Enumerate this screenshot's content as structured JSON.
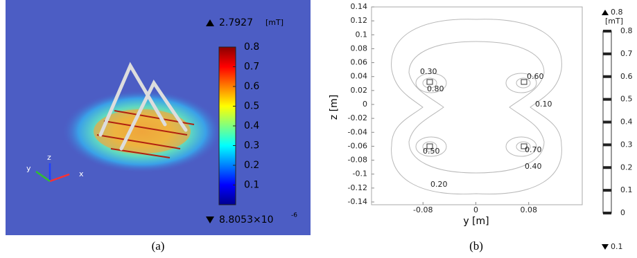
{
  "panel_a": {
    "max_value": "2.7927",
    "unit": "[mT]",
    "min_value": "8.8053×10",
    "min_exponent": "-6",
    "colorbar_range": [
      0,
      0.8
    ],
    "colorbar_ticks": [
      0.1,
      0.2,
      0.3,
      0.4,
      0.5,
      0.6,
      0.7,
      0.8
    ],
    "axes": {
      "z": "z",
      "y": "y",
      "x": "x"
    },
    "caption": "(a)"
  },
  "panel_b": {
    "xlabel": "y [m]",
    "ylabel": "z [m]",
    "xlim": [
      -0.16,
      0.16
    ],
    "ylim": [
      -0.14,
      0.14
    ],
    "xticks": [
      -0.08,
      0,
      0.08
    ],
    "yticks": [
      -0.14,
      -0.12,
      -0.1,
      -0.08,
      -0.06,
      -0.04,
      -0.02,
      0,
      0.02,
      0.04,
      0.06,
      0.08,
      0.1,
      0.12,
      0.14
    ],
    "contour_labels": [
      "0.30",
      "0.80",
      "0.60",
      "0.10",
      "0.50",
      "0.70",
      "0.40",
      "0.20"
    ],
    "colorbar_max": "0.8",
    "colorbar_unit": "[mT]",
    "colorbar_min": "0.1",
    "colorbar_range": [
      0,
      0.8
    ],
    "colorbar_ticks": [
      0,
      0.1,
      0.2,
      0.3,
      0.4,
      0.5,
      0.6,
      0.7,
      0.8
    ],
    "caption": "(b)"
  }
}
